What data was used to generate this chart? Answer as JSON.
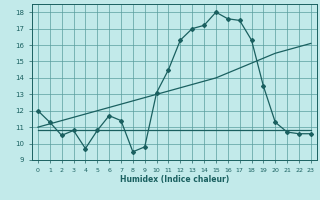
{
  "xlabel": "Humidex (Indice chaleur)",
  "background_color": "#c2eaea",
  "grid_color": "#5a9e9e",
  "line_color": "#1a6060",
  "xlim": [
    -0.5,
    23.5
  ],
  "ylim": [
    9,
    18.5
  ],
  "xticks": [
    0,
    1,
    2,
    3,
    4,
    5,
    6,
    7,
    8,
    9,
    10,
    11,
    12,
    13,
    14,
    15,
    16,
    17,
    18,
    19,
    20,
    21,
    22,
    23
  ],
  "yticks": [
    9,
    10,
    11,
    12,
    13,
    14,
    15,
    16,
    17,
    18
  ],
  "line1_x": [
    0,
    1,
    2,
    3,
    4,
    5,
    6,
    7,
    8,
    9,
    10,
    11,
    12,
    13,
    14,
    15,
    16,
    17,
    18,
    19,
    20,
    21,
    22,
    23
  ],
  "line1_y": [
    12.0,
    11.3,
    10.5,
    10.8,
    9.7,
    10.8,
    11.7,
    11.4,
    9.5,
    9.8,
    13.1,
    14.5,
    16.3,
    17.0,
    17.2,
    18.0,
    17.6,
    17.5,
    16.3,
    13.5,
    11.3,
    10.7,
    10.6,
    10.6
  ],
  "line2_x": [
    0,
    1,
    2,
    3,
    4,
    5,
    6,
    7,
    8,
    9,
    10,
    11,
    12,
    13,
    14,
    15,
    16,
    17,
    18,
    19,
    20,
    21,
    22,
    23
  ],
  "line2_y": [
    10.85,
    10.85,
    10.85,
    10.85,
    10.85,
    10.85,
    10.85,
    10.85,
    10.85,
    10.85,
    10.85,
    10.85,
    10.85,
    10.85,
    10.85,
    10.85,
    10.85,
    10.85,
    10.85,
    10.85,
    10.85,
    10.85,
    10.85,
    10.85
  ],
  "line3_x": [
    0,
    1,
    2,
    3,
    4,
    5,
    6,
    7,
    8,
    9,
    10,
    11,
    12,
    13,
    14,
    15,
    16,
    17,
    18,
    19,
    20,
    21,
    22,
    23
  ],
  "line3_y": [
    11.0,
    11.2,
    11.4,
    11.6,
    11.8,
    12.0,
    12.2,
    12.4,
    12.6,
    12.8,
    13.0,
    13.2,
    13.4,
    13.6,
    13.8,
    14.0,
    14.3,
    14.6,
    14.9,
    15.2,
    15.5,
    15.7,
    15.9,
    16.1
  ]
}
